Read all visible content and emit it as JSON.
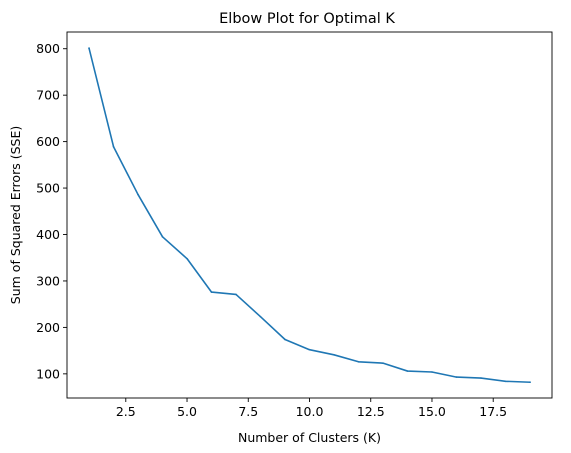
{
  "chart_data": {
    "type": "line",
    "title": "Elbow Plot for Optimal K",
    "xlabel": "Number of Clusters (K)",
    "ylabel": "Sum of Squared Errors (SSE)",
    "xlim": [
      0.1,
      19.9
    ],
    "ylim": [
      48,
      836
    ],
    "xticks": [
      2.5,
      5.0,
      7.5,
      10.0,
      12.5,
      15.0,
      17.5
    ],
    "xtick_labels": [
      "2.5",
      "5.0",
      "7.5",
      "10.0",
      "12.5",
      "15.0",
      "17.5"
    ],
    "yticks": [
      100,
      200,
      300,
      400,
      500,
      600,
      700,
      800
    ],
    "ytick_labels": [
      "100",
      "200",
      "300",
      "400",
      "500",
      "600",
      "700",
      "800"
    ],
    "grid": false,
    "series": [
      {
        "color": "#1f77b4",
        "x": [
          1,
          2,
          3,
          4,
          5,
          6,
          7,
          8,
          9,
          10,
          11,
          12,
          13,
          14,
          15,
          16,
          17,
          18,
          19
        ],
        "y": [
          801,
          589,
          486,
          395,
          348,
          276,
          271,
          223,
          174,
          152,
          141,
          126,
          123,
          106,
          104,
          93,
          91,
          84,
          82
        ]
      }
    ]
  }
}
